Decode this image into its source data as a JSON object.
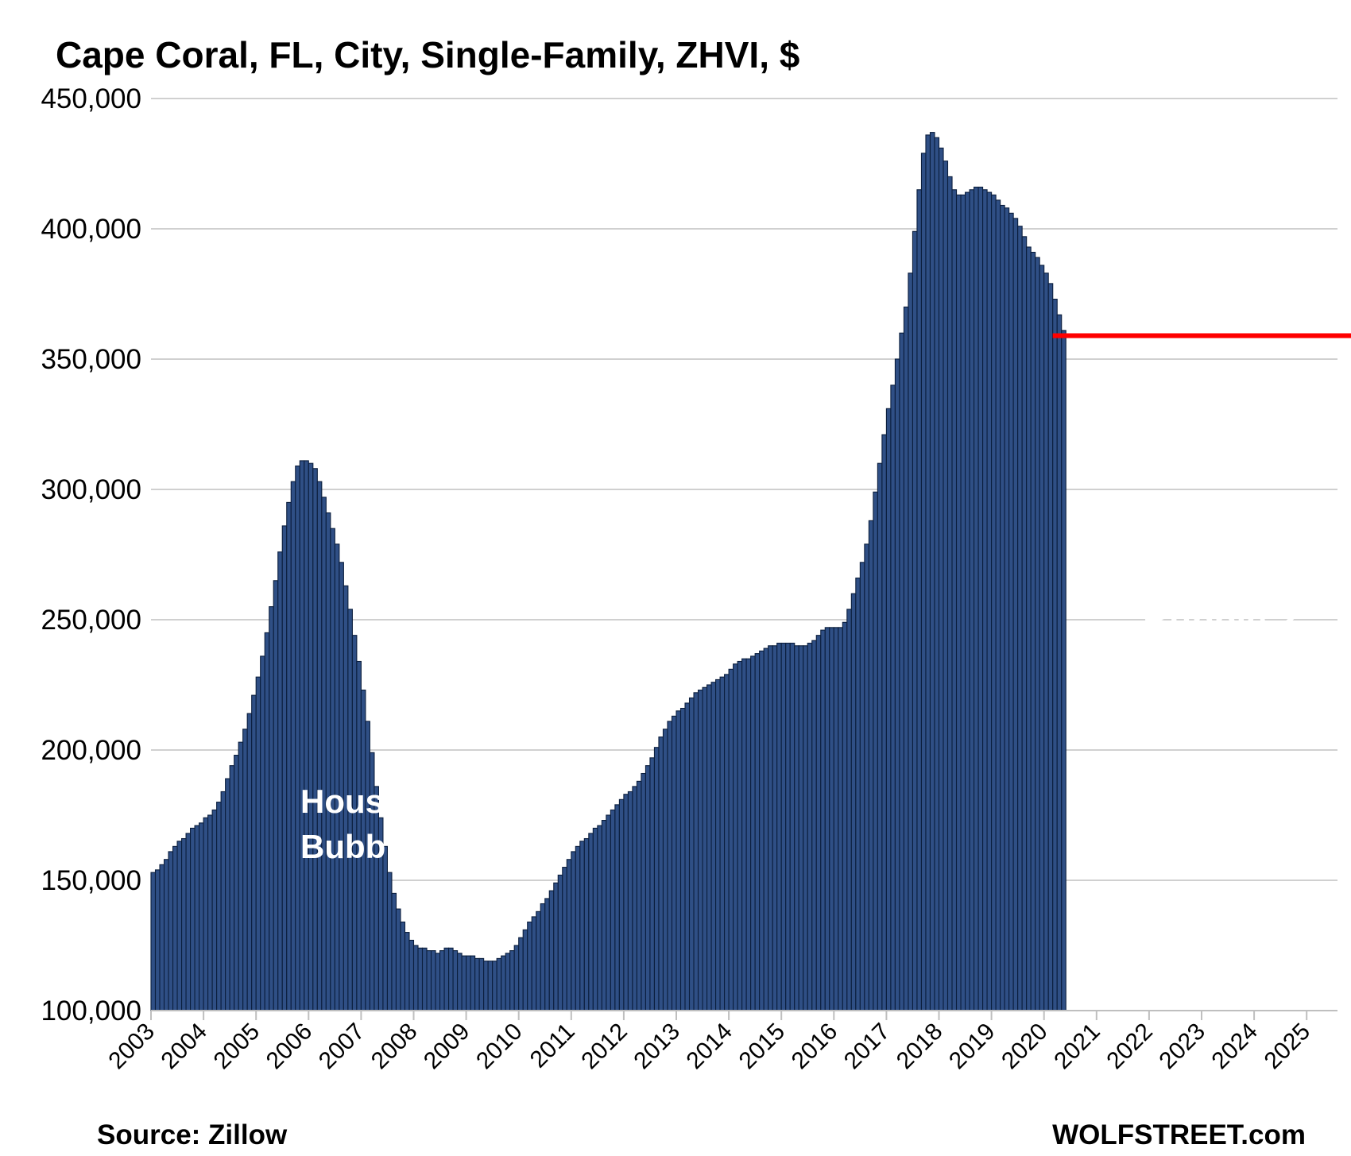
{
  "chart_data": {
    "type": "bar",
    "title": "Cape Coral, FL, City, Single-Family, ZHVI, $",
    "xlabel": "",
    "ylabel": "",
    "ylim": [
      100000,
      450000
    ],
    "y_ticks": [
      "100,000",
      "150,000",
      "200,000",
      "250,000",
      "300,000",
      "350,000",
      "400,000",
      "450,000"
    ],
    "y_tick_values": [
      100000,
      150000,
      200000,
      250000,
      300000,
      350000,
      400000,
      450000
    ],
    "x_tick_labels": [
      "2003",
      "2004",
      "2005",
      "2006",
      "2007",
      "2008",
      "2009",
      "2010",
      "2011",
      "2012",
      "2013",
      "2014",
      "2015",
      "2016",
      "2017",
      "2018",
      "2019",
      "2020",
      "2021",
      "2022",
      "2023",
      "2024",
      "2025"
    ],
    "grid": true,
    "bar_color": "#2f4f85",
    "bar_edge_color": "#0b1e3d",
    "reference_line": {
      "y": 359000,
      "from": "2020-03",
      "color": "#ff0000"
    },
    "annotations": [
      {
        "text_lines": [
          "Housing",
          "Bubble 1"
        ]
      },
      {
        "text_lines": [
          "Housing",
          "Bubble 2"
        ]
      }
    ],
    "series": [
      {
        "start": "2003-01",
        "frequency": "monthly",
        "values": [
          153000,
          154000,
          156000,
          158000,
          161000,
          163000,
          165000,
          166000,
          168000,
          170000,
          171000,
          172000,
          174000,
          175000,
          177000,
          180000,
          184000,
          189000,
          194000,
          198000,
          203000,
          208000,
          214000,
          221000,
          228000,
          236000,
          245000,
          255000,
          265000,
          276000,
          286000,
          295000,
          303000,
          309000,
          311000,
          311000,
          310000,
          308000,
          303000,
          297000,
          291000,
          285000,
          279000,
          272000,
          263000,
          254000,
          244000,
          234000,
          223000,
          211000,
          199000,
          186000,
          174000,
          163000,
          153000,
          145000,
          139000,
          134000,
          130000,
          127000,
          125000,
          124000,
          124000,
          123000,
          123000,
          122000,
          123000,
          124000,
          124000,
          123000,
          122000,
          121000,
          121000,
          121000,
          120000,
          120000,
          119000,
          119000,
          119000,
          120000,
          121000,
          122000,
          123000,
          125000,
          128000,
          131000,
          134000,
          136000,
          138000,
          141000,
          143000,
          146000,
          149000,
          152000,
          155000,
          158000,
          161000,
          163000,
          165000,
          166000,
          168000,
          170000,
          171000,
          173000,
          175000,
          177000,
          179000,
          181000,
          183000,
          184000,
          186000,
          188000,
          191000,
          194000,
          197000,
          201000,
          205000,
          208000,
          211000,
          213000,
          215000,
          216000,
          218000,
          220000,
          222000,
          223000,
          224000,
          225000,
          226000,
          227000,
          228000,
          229000,
          231000,
          233000,
          234000,
          235000,
          235000,
          236000,
          237000,
          238000,
          239000,
          240000,
          240000,
          241000,
          241000,
          241000,
          241000,
          240000,
          240000,
          240000,
          241000,
          242000,
          244000,
          246000,
          247000,
          247000,
          247000,
          247000,
          249000,
          254000,
          260000,
          266000,
          272000,
          279000,
          288000,
          299000,
          310000,
          321000,
          331000,
          340000,
          350000,
          360000,
          370000,
          383000,
          399000,
          415000,
          429000,
          436000,
          437000,
          435000,
          431000,
          426000,
          420000,
          415000,
          413000,
          413000,
          414000,
          415000,
          416000,
          416000,
          415000,
          414000,
          413000,
          411000,
          409000,
          408000,
          406000,
          404000,
          401000,
          397000,
          393000,
          391000,
          389000,
          386000,
          383000,
          379000,
          373000,
          367000,
          361000
        ]
      }
    ]
  },
  "footer": {
    "source": "Source: Zillow",
    "brand": "WOLFSTREET.com"
  }
}
